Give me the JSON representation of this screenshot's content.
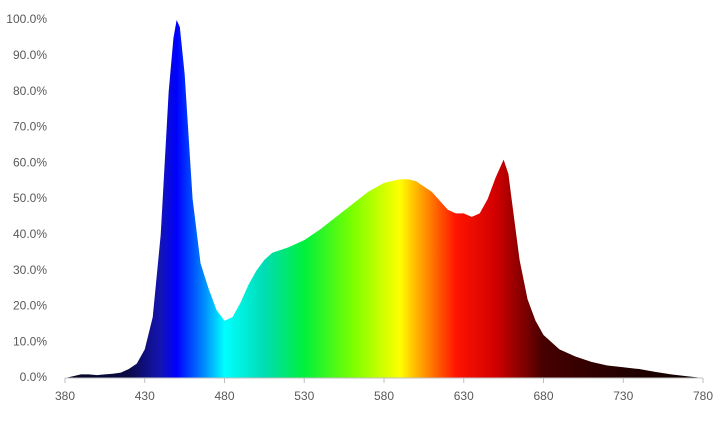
{
  "chart_data": {
    "type": "area",
    "x": [
      380,
      385,
      390,
      395,
      400,
      405,
      410,
      415,
      420,
      425,
      430,
      435,
      440,
      445,
      448,
      450,
      452,
      455,
      460,
      465,
      470,
      475,
      480,
      485,
      490,
      495,
      500,
      505,
      510,
      520,
      530,
      540,
      550,
      560,
      570,
      580,
      590,
      595,
      600,
      610,
      620,
      625,
      630,
      635,
      640,
      645,
      650,
      655,
      658,
      660,
      665,
      670,
      675,
      680,
      690,
      700,
      710,
      720,
      730,
      740,
      750,
      760,
      770,
      780
    ],
    "values": [
      0,
      0.5,
      1,
      1,
      0.8,
      1,
      1.2,
      1.5,
      2.5,
      4,
      8,
      17,
      40,
      80,
      95,
      100,
      98,
      85,
      50,
      32,
      25,
      19,
      16,
      17,
      21,
      26,
      30,
      33,
      35,
      36.5,
      38.5,
      41.5,
      45,
      48.5,
      52,
      54.5,
      55.5,
      55.5,
      55,
      52,
      47,
      46,
      46,
      45,
      46,
      50,
      56,
      61,
      57,
      50,
      33,
      22,
      16,
      12,
      8,
      6,
      4.5,
      3.5,
      3,
      2.5,
      1.7,
      1,
      0.5,
      0
    ],
    "xlim": [
      380,
      780
    ],
    "xticks": [
      380,
      430,
      480,
      530,
      580,
      630,
      680,
      730,
      780
    ],
    "ylim": [
      0,
      100
    ],
    "yticks": [
      {
        "value": 0,
        "label": "0.0%"
      },
      {
        "value": 10,
        "label": "10.0%"
      },
      {
        "value": 20,
        "label": "20.0%"
      },
      {
        "value": 30,
        "label": "30.0%"
      },
      {
        "value": 40,
        "label": "40.0%"
      },
      {
        "value": 50,
        "label": "50.0%"
      },
      {
        "value": 60,
        "label": "60.0%"
      },
      {
        "value": 70,
        "label": "70.0%"
      },
      {
        "value": 80,
        "label": "80.0%"
      },
      {
        "value": 90,
        "label": "90.0%"
      },
      {
        "value": 100,
        "label": "100.0%"
      }
    ],
    "grid": false
  }
}
